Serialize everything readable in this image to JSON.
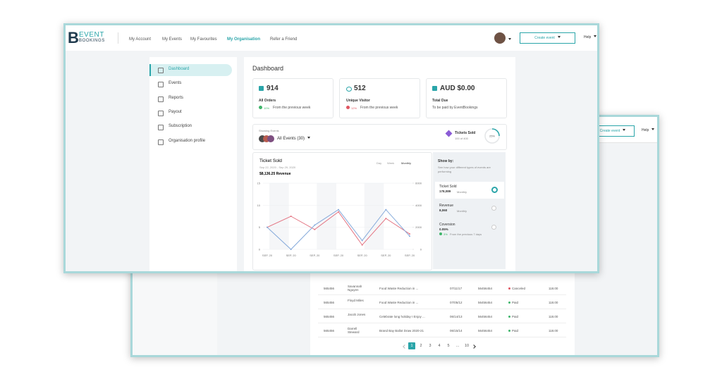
{
  "front": {
    "logo": {
      "letter": "B",
      "top": "EVENT",
      "bottom": "BOOKINGS"
    },
    "nav": [
      "My Account",
      "My Events",
      "My Favourites",
      "My Organisation",
      "Refer a Friend"
    ],
    "create_event": "Create event",
    "help": "Help",
    "sidebar": [
      "Dashboard",
      "Events",
      "Reports",
      "Payout",
      "Subscription",
      "Organisation profile"
    ],
    "title": "Dashboard",
    "cards": [
      {
        "value": 914,
        "label": "All Orders",
        "change": "10%",
        "note": "From the previous week"
      },
      {
        "value": 512,
        "label": "Unique Visitor",
        "change": "12%",
        "note": "From the previous week"
      },
      {
        "value": "AUD $0.00",
        "label": "Total Due",
        "note": "To be paid by EventBookings"
      }
    ],
    "showing": {
      "label": "Showing Events",
      "select": "All Events (30)",
      "tickets": "Tickets Sold",
      "tickets_note": "100 of 400",
      "progress": 25,
      "progress_label": "25%"
    },
    "show_by": {
      "title": "Show by:",
      "note": "See how your different types of events are performing",
      "items": [
        {
          "label": "Ticket Sold",
          "value": "178,089",
          "period": "Monthly"
        },
        {
          "label": "Revenue",
          "value": "8,060",
          "period": "Monthly"
        },
        {
          "label": "Coversion",
          "value": "0.05%",
          "change": "3%",
          "period": "From the previous 7 days"
        }
      ]
    }
  },
  "chart_data": {
    "type": "line",
    "title": "Ticket Sold",
    "subtitle": "Sep 22, 2020 - Sep 29, 2020",
    "revenue": "$8,136.25 Revenue",
    "tabs": [
      "Day",
      "Week",
      "Monthly"
    ],
    "categories": [
      "SEP, 20",
      "SEP, 20",
      "SEP, 20",
      "SEP, 20",
      "SEP, 20",
      "SEP, 20",
      "SEP, 20"
    ],
    "series": [
      {
        "color": "#e47583",
        "values": [
          5,
          7.5,
          4.5,
          8.5,
          1,
          7,
          3.5
        ]
      },
      {
        "color": "#84a9da",
        "values": [
          5,
          0,
          5.5,
          9,
          2,
          9,
          3
        ]
      }
    ],
    "ylim": [
      0,
      15
    ],
    "yticks": [
      0,
      5,
      10,
      15
    ],
    "y2lim": [
      0,
      6000
    ],
    "y2ticks": [
      0,
      2000,
      4000,
      6000
    ],
    "grid": true
  },
  "back": {
    "create_event": "Create event",
    "help": "Help",
    "rows": [
      [
        "565456",
        "Savannah Nguyen",
        "Food Waste Reduction in ...",
        "07/11/17",
        "56456454",
        "Canceled",
        "118.00"
      ],
      [
        "565456",
        "Floyd Miles",
        "Food Waste Reduction in ...",
        "07/05/12",
        "56456454",
        "Paid",
        "118.00"
      ],
      [
        "565456",
        "Jacob Jones",
        "Celebrate long holiday I Enjoy ...",
        "06/14/13",
        "56456454",
        "Paid",
        "118.00"
      ],
      [
        "565456",
        "Darrell Steward",
        "Brand Bay Ballot Draw 2020-21",
        "06/15/14",
        "56456454",
        "Paid",
        "118.00"
      ]
    ],
    "status_colors": [
      "#e05561",
      "#3fb56b",
      "#3fb56b",
      "#3fb56b"
    ],
    "pagination": [
      "1",
      "2",
      "3",
      "4",
      "5",
      "...",
      "10"
    ]
  }
}
